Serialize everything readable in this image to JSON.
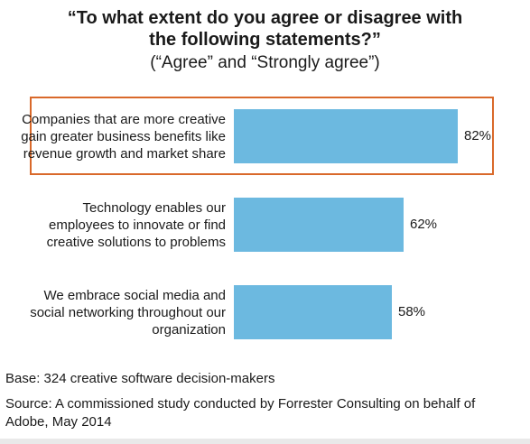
{
  "chart_data": {
    "type": "bar",
    "orientation": "horizontal",
    "title": "“To what extent do you agree or disagree with the following statements?”",
    "subtitle": "(“Agree” and “Strongly agree”)",
    "categories": [
      "Companies that are more creative gain greater business benefits like revenue growth and market share",
      "Technology enables our employees to innovate or find creative solutions to problems",
      "We embrace social media and social networking throughout our organization"
    ],
    "values": [
      82,
      62,
      58
    ],
    "value_labels": [
      "82%",
      "62%",
      "58%"
    ],
    "xlim": [
      0,
      100
    ],
    "bar_color": "#6cb9e0",
    "highlight_color": "#d9692a",
    "highlighted_category_index": 0,
    "grid": false
  },
  "title_line1": "“To what extent do you agree or disagree with",
  "title_line2": "the following statements?”",
  "footer": {
    "base": "Base: 324 creative software decision-makers",
    "source": "Source: A commissioned study conducted by Forrester Consulting on behalf of Adobe, May 2014"
  }
}
